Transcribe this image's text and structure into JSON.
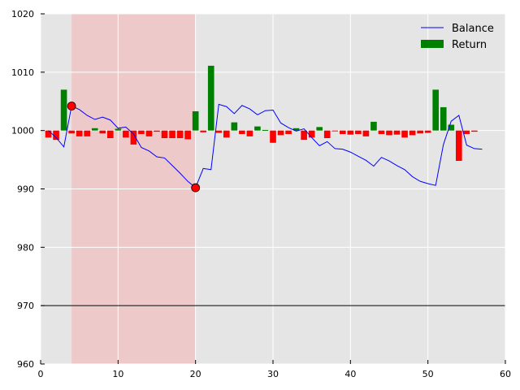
{
  "chart_data": {
    "type": "line",
    "xlim": [
      0,
      60
    ],
    "ylim": [
      960,
      1020
    ],
    "xticks": [
      0,
      10,
      20,
      30,
      40,
      50,
      60
    ],
    "yticks": [
      960,
      970,
      980,
      990,
      1000,
      1010,
      1020
    ],
    "grid": true,
    "legend_position": "top-right",
    "background": "#e5e5e5",
    "baseline": 1000,
    "reference_line": 970,
    "shaded_region": {
      "x": [
        4,
        20
      ],
      "color": "#f5b3b3"
    },
    "series": [
      {
        "name": "Balance",
        "kind": "line",
        "color": "#0000ff",
        "points": [
          [
            1,
            1000.0
          ],
          [
            2,
            998.8
          ],
          [
            3,
            997.2
          ],
          [
            4,
            1004.2
          ],
          [
            5,
            1003.6
          ],
          [
            6,
            1002.6
          ],
          [
            7,
            1001.9
          ],
          [
            8,
            1002.3
          ],
          [
            9,
            1001.8
          ],
          [
            10,
            1000.4
          ],
          [
            11,
            1000.6
          ],
          [
            12,
            999.4
          ],
          [
            13,
            997.1
          ],
          [
            14,
            996.5
          ],
          [
            15,
            995.5
          ],
          [
            16,
            995.3
          ],
          [
            17,
            994.0
          ],
          [
            18,
            992.7
          ],
          [
            19,
            991.3
          ],
          [
            20,
            990.2
          ],
          [
            21,
            993.5
          ],
          [
            22,
            993.3
          ],
          [
            23,
            1004.5
          ],
          [
            24,
            1004.1
          ],
          [
            25,
            1002.9
          ],
          [
            26,
            1004.3
          ],
          [
            27,
            1003.7
          ],
          [
            28,
            1002.7
          ],
          [
            29,
            1003.4
          ],
          [
            30,
            1003.5
          ],
          [
            31,
            1001.3
          ],
          [
            32,
            1000.5
          ],
          [
            33,
            999.9
          ],
          [
            34,
            1000.3
          ],
          [
            35,
            998.8
          ],
          [
            36,
            997.4
          ],
          [
            37,
            998.1
          ],
          [
            38,
            996.9
          ],
          [
            39,
            996.8
          ],
          [
            40,
            996.3
          ],
          [
            41,
            995.6
          ],
          [
            42,
            994.9
          ],
          [
            43,
            993.9
          ],
          [
            44,
            995.4
          ],
          [
            45,
            994.8
          ],
          [
            46,
            994.0
          ],
          [
            47,
            993.3
          ],
          [
            48,
            992.1
          ],
          [
            49,
            991.3
          ],
          [
            50,
            990.9
          ],
          [
            51,
            990.6
          ],
          [
            52,
            997.6
          ],
          [
            53,
            1001.6
          ],
          [
            54,
            1002.6
          ],
          [
            55,
            997.5
          ],
          [
            56,
            996.9
          ],
          [
            57,
            996.8
          ]
        ]
      },
      {
        "name": "Return",
        "kind": "bar",
        "color_positive": "#008000",
        "color_negative": "#ff0000",
        "points": [
          [
            1,
            -1.2
          ],
          [
            2,
            -1.6
          ],
          [
            3,
            7.0
          ],
          [
            4,
            -0.5
          ],
          [
            5,
            -1.0
          ],
          [
            6,
            -1.0
          ],
          [
            7,
            0.4
          ],
          [
            8,
            -0.5
          ],
          [
            9,
            -1.3
          ],
          [
            10,
            0.3
          ],
          [
            11,
            -1.2
          ],
          [
            12,
            -2.4
          ],
          [
            13,
            -0.6
          ],
          [
            14,
            -1.0
          ],
          [
            15,
            -0.2
          ],
          [
            16,
            -1.3
          ],
          [
            17,
            -1.3
          ],
          [
            18,
            -1.3
          ],
          [
            19,
            -1.5
          ],
          [
            20,
            3.3
          ],
          [
            21,
            -0.3
          ],
          [
            22,
            11.1
          ],
          [
            23,
            -0.4
          ],
          [
            24,
            -1.2
          ],
          [
            25,
            1.4
          ],
          [
            26,
            -0.6
          ],
          [
            27,
            -1.0
          ],
          [
            28,
            0.7
          ],
          [
            29,
            0.1
          ],
          [
            30,
            -2.1
          ],
          [
            31,
            -0.8
          ],
          [
            32,
            -0.6
          ],
          [
            33,
            0.4
          ],
          [
            34,
            -1.6
          ],
          [
            35,
            -1.2
          ],
          [
            36,
            0.6
          ],
          [
            37,
            -1.3
          ],
          [
            38,
            -0.1
          ],
          [
            39,
            -0.6
          ],
          [
            40,
            -0.7
          ],
          [
            41,
            -0.6
          ],
          [
            42,
            -1.0
          ],
          [
            43,
            1.5
          ],
          [
            44,
            -0.6
          ],
          [
            45,
            -0.8
          ],
          [
            46,
            -0.7
          ],
          [
            47,
            -1.2
          ],
          [
            48,
            -0.8
          ],
          [
            49,
            -0.5
          ],
          [
            50,
            -0.4
          ],
          [
            51,
            7.0
          ],
          [
            52,
            4.0
          ],
          [
            53,
            1.0
          ],
          [
            54,
            -5.2
          ],
          [
            55,
            -0.6
          ],
          [
            56,
            -0.2
          ]
        ]
      }
    ],
    "markers": [
      {
        "x": 4,
        "y": 1004.2,
        "color": "#ff0000"
      },
      {
        "x": 20,
        "y": 990.2,
        "color": "#ff0000"
      }
    ],
    "legend": [
      {
        "label": "Balance",
        "kind": "line",
        "color": "#0000ff"
      },
      {
        "label": "Return",
        "kind": "bar",
        "color": "#008000"
      }
    ]
  }
}
